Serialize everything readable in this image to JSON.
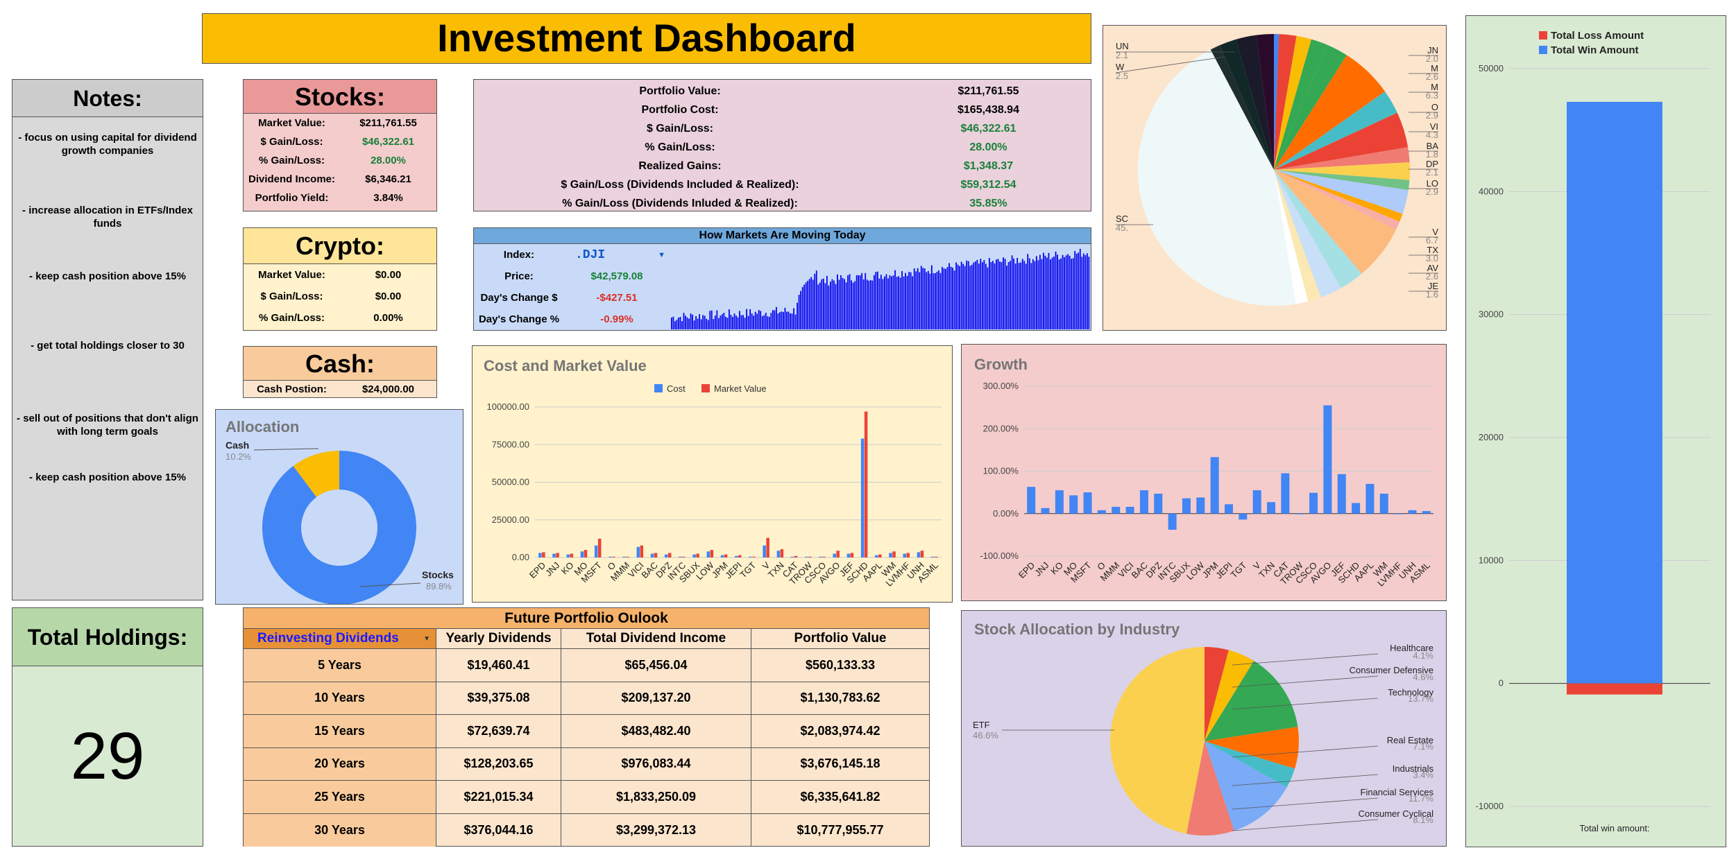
{
  "header": {
    "title": "Investment Dashboard"
  },
  "notes": {
    "title": "Notes:",
    "items": [
      "- focus on using capital for dividend growth companies",
      "- increase allocation in ETFs/Index funds",
      "- keep cash position above 15%",
      "- get total holdings closer to 30",
      "- sell out of positions that don't align with long term goals",
      "- keep cash position above 15%"
    ]
  },
  "total_holdings": {
    "title": "Total Holdings:",
    "value": "29"
  },
  "stocks": {
    "title": "Stocks:",
    "rows": [
      {
        "label": "Market Value:",
        "value": "$211,761.55"
      },
      {
        "label": "$ Gain/Loss:",
        "value": "$46,322.61"
      },
      {
        "label": "% Gain/Loss:",
        "value": "28.00%"
      },
      {
        "label": "Dividend Income:",
        "value": "$6,346.21"
      },
      {
        "label": "Portfolio Yield:",
        "value": "3.84%"
      }
    ]
  },
  "crypto": {
    "title": "Crypto:",
    "rows": [
      {
        "label": "Market Value:",
        "value": "$0.00"
      },
      {
        "label": "$ Gain/Loss:",
        "value": "$0.00"
      },
      {
        "label": "% Gain/Loss:",
        "value": "0.00%"
      }
    ]
  },
  "cash": {
    "title": "Cash:",
    "label": "Cash Postion:",
    "value": "$24,000.00"
  },
  "portfolio": {
    "rows": [
      {
        "label": "Portfolio Value:",
        "value": "$211,761.55"
      },
      {
        "label": "Portfolio Cost:",
        "value": "$165,438.94"
      },
      {
        "label": "$ Gain/Loss:",
        "value": "$46,322.61"
      },
      {
        "label": "% Gain/Loss:",
        "value": "28.00%"
      },
      {
        "label": "Realized Gains:",
        "value": "$1,348.37"
      },
      {
        "label": "$ Gain/Loss (Dividends Included & Realized):",
        "value": "$59,312.54"
      },
      {
        "label": "% Gain/Loss (Dividends Inluded & Realized):",
        "value": "35.85%"
      }
    ]
  },
  "markets": {
    "title": "How Markets Are Moving Today",
    "index_label": "Index:",
    "index_value": ".DJI",
    "price_label": "Price:",
    "price_value": "$42,579.08",
    "change_label": "Day's Change $",
    "change_value": "-$427.51",
    "pct_label": "Day's Change %",
    "pct_value": "-0.99%"
  },
  "outlook": {
    "title": "Future Portfolio Oulook",
    "headers": [
      "Reinvesting Dividends",
      "Yearly Dividends",
      "Total Dividend Income",
      "Portfolio Value"
    ],
    "rows": [
      [
        "5 Years",
        "$19,460.41",
        "$65,456.04",
        "$560,133.33"
      ],
      [
        "10 Years",
        "$39,375.08",
        "$209,137.20",
        "$1,130,783.62"
      ],
      [
        "15 Years",
        "$72,639.74",
        "$483,482.40",
        "$2,083,974.42"
      ],
      [
        "20 Years",
        "$128,203.65",
        "$976,083.44",
        "$3,676,145.18"
      ],
      [
        "25 Years",
        "$221,015.34",
        "$1,833,250.09",
        "$6,335,641.82"
      ],
      [
        "30 Years",
        "$376,044.16",
        "$3,299,372.13",
        "$10,777,955.77"
      ]
    ]
  },
  "colors": {
    "yellow": "#fbbc04",
    "blue": "#4285f4",
    "red": "#ea4335",
    "green": "#34a853",
    "orange": "#ff6d01",
    "teal": "#46bdc6"
  },
  "chart_data": [
    {
      "type": "pie",
      "title": "Allocation",
      "labels": [
        "Stocks",
        "Cash"
      ],
      "values": [
        89.8,
        10.2
      ],
      "value_labels": [
        "89.8%",
        "10.2%"
      ],
      "colors": [
        "#4285f4",
        "#fbbc04"
      ],
      "donut": true
    },
    {
      "type": "bar",
      "title": "Cost and Market Value",
      "legend": "top",
      "categories": [
        "EPD",
        "JNJ",
        "KO",
        "MO",
        "MSFT",
        "O",
        "MMM",
        "VICI",
        "BAC",
        "DPZ",
        "INTC",
        "SBUX",
        "LOW",
        "JPM",
        "JEPI",
        "TGT",
        "V",
        "TXN",
        "CAT",
        "TROW",
        "CSCO",
        "AVGO",
        "JEF",
        "SCHD",
        "AAPL",
        "WM",
        "LVMHF",
        "UNH",
        "ASML"
      ],
      "series": [
        {
          "name": "Cost",
          "color": "#4285f4",
          "values": [
            3000,
            2500,
            2000,
            4000,
            8000,
            500,
            500,
            7000,
            2500,
            2000,
            500,
            2000,
            4000,
            1500,
            1000,
            500,
            8000,
            4500,
            500,
            500,
            500,
            2500,
            2500,
            79000,
            1500,
            3000,
            2500,
            3500,
            500
          ]
        },
        {
          "name": "Market Value",
          "color": "#ea4335",
          "values": [
            3500,
            3000,
            2500,
            5000,
            12500,
            500,
            500,
            8000,
            3000,
            3000,
            500,
            2500,
            5000,
            2000,
            1500,
            500,
            13000,
            5500,
            1000,
            500,
            500,
            4500,
            3000,
            97000,
            2000,
            4000,
            3000,
            4500,
            500
          ]
        }
      ],
      "yticks": [
        "0.00",
        "25000.00",
        "50000.00",
        "75000.00",
        "100000.00"
      ],
      "ylim": [
        0,
        100000
      ]
    },
    {
      "type": "bar",
      "title": "Growth",
      "categories": [
        "EPD",
        "JNJ",
        "KO",
        "MO",
        "MSFT",
        "O",
        "MMM",
        "VICI",
        "BAC",
        "DPZ",
        "INTC",
        "SBUX",
        "LOW",
        "JPM",
        "JEPI",
        "TGT",
        "V",
        "TXN",
        "CAT",
        "TROW",
        "CSCO",
        "AVGO",
        "JEF",
        "SCHD",
        "AAPL",
        "WM",
        "LVMHF",
        "UNH",
        "ASML"
      ],
      "values": [
        63,
        13,
        55,
        43,
        50,
        8,
        16,
        16,
        55,
        47,
        -38,
        36,
        38,
        133,
        22,
        -14,
        55,
        27,
        95,
        0,
        49,
        255,
        93,
        25,
        70,
        47,
        0,
        8,
        6
      ],
      "yticks": [
        "-100.00%",
        "0.00%",
        "100.00%",
        "200.00%",
        "300.00%"
      ],
      "ylim": [
        -100,
        300
      ]
    },
    {
      "type": "pie",
      "title": "Stock Allocation by Industry",
      "labels": [
        "Healthcare",
        "Consumer Defensive",
        "Technology",
        "Real Estate",
        "Industrials",
        "Financial Services",
        "Consumer Cyclical",
        "ETF"
      ],
      "values": [
        4.1,
        4.6,
        13.7,
        7.1,
        3.4,
        11.7,
        8.1,
        46.6
      ],
      "value_labels": [
        "4.1%",
        "4.6%",
        "13.7%",
        "7.1%",
        "3.4%",
        "11.7%",
        "8.1%",
        "46.6%"
      ],
      "colors": [
        "#ea4335",
        "#fbbc04",
        "#34a853",
        "#ff6d01",
        "#46bdc6",
        "#7baaf7",
        "#f07b72",
        "#fcd04f"
      ]
    },
    {
      "type": "pie",
      "title": "",
      "labels": [
        "UN",
        "JN",
        "W",
        "M",
        "M",
        "O",
        "VI",
        "BA",
        "DP",
        "LO",
        "V",
        "TX",
        "AV",
        "JE",
        "SC"
      ],
      "value_labels": [
        "2.1",
        "2.0",
        "2.5",
        "2.6",
        "6.3",
        "2.9",
        "4.3",
        "1.8",
        "2.1",
        "2.9",
        "6.7",
        "3.0",
        "2.6",
        "1.6",
        "45."
      ]
    },
    {
      "type": "bar",
      "title": "",
      "xlabel": "Total win amount:",
      "series": [
        {
          "name": "Total Loss Amount",
          "color": "#ea4335",
          "values": [
            -900
          ]
        },
        {
          "name": "Total Win Amount",
          "color": "#4285f4",
          "values": [
            47300
          ]
        }
      ],
      "yticks": [
        "-10000",
        "0",
        "10000",
        "20000",
        "30000",
        "40000",
        "50000"
      ],
      "ylim": [
        -10000,
        50000
      ]
    }
  ]
}
